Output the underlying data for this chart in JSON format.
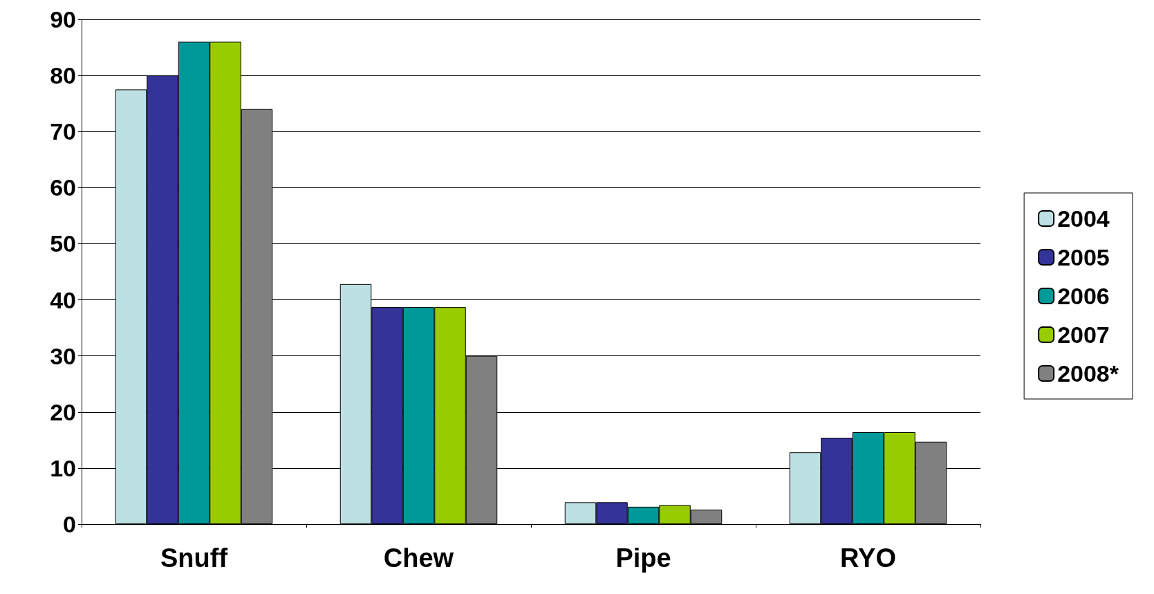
{
  "chart_data": {
    "type": "bar",
    "categories": [
      "Snuff",
      "Chew",
      "Pipe",
      "RYO"
    ],
    "series": [
      {
        "name": "2004",
        "color": "#bde0e4",
        "values": [
          77.5,
          42.8,
          3.9,
          12.8
        ]
      },
      {
        "name": "2005",
        "color": "#333399",
        "values": [
          80,
          38.7,
          3.9,
          15.4
        ]
      },
      {
        "name": "2006",
        "color": "#009999",
        "values": [
          86,
          38.7,
          3.1,
          16.4
        ]
      },
      {
        "name": "2007",
        "color": "#99cc00",
        "values": [
          86,
          38.7,
          3.4,
          16.4
        ]
      },
      {
        "name": "2008*",
        "color": "#808080",
        "values": [
          74,
          30,
          2.6,
          14.7
        ]
      }
    ],
    "ylim": [
      0,
      90
    ],
    "yticks": [
      0,
      10,
      20,
      30,
      40,
      50,
      60,
      70,
      80,
      90
    ],
    "grid": "y",
    "legend": "right"
  }
}
